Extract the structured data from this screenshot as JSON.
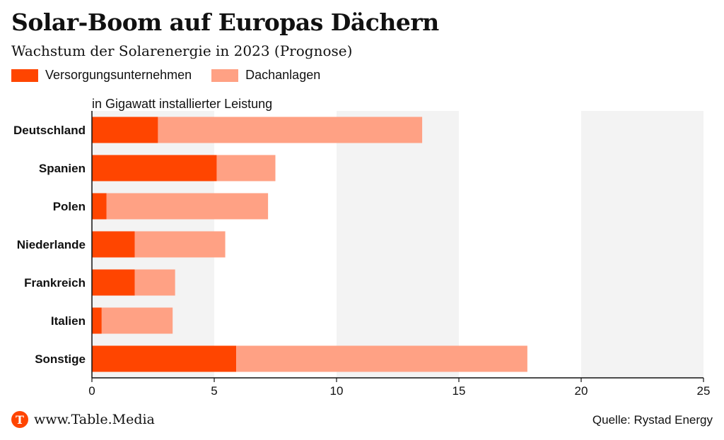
{
  "header": {
    "title": "Solar-Boom auf Europas Dächern",
    "subtitle": "Wachstum der Solarenergie in 2023 (Prognose)"
  },
  "legend": [
    {
      "label": "Versorgungsunternehmen",
      "color": "#ff4500"
    },
    {
      "label": "Dachanlagen",
      "color": "#ffa184"
    }
  ],
  "chart_data": {
    "type": "bar",
    "orientation": "horizontal",
    "stacked": true,
    "unit_label": "in Gigawatt installierter Leistung",
    "categories": [
      "Deutschland",
      "Spanien",
      "Polen",
      "Niederlande",
      "Frankreich",
      "Italien",
      "Sonstige"
    ],
    "series": [
      {
        "name": "Versorgungsunternehmen",
        "color": "#ff4500",
        "values": [
          2.7,
          5.1,
          0.6,
          1.75,
          1.75,
          0.4,
          5.9
        ]
      },
      {
        "name": "Dachanlagen",
        "color": "#ffa184",
        "values": [
          10.8,
          2.4,
          6.6,
          3.7,
          1.65,
          2.9,
          11.9
        ]
      }
    ],
    "xlim": [
      0,
      25
    ],
    "xticks": [
      0,
      5,
      10,
      15,
      20,
      25
    ],
    "grid": "alternating bands"
  },
  "footer": {
    "logo_letter": "T",
    "site": "www.Table.Media",
    "source": "Quelle: Rystad Energy"
  }
}
